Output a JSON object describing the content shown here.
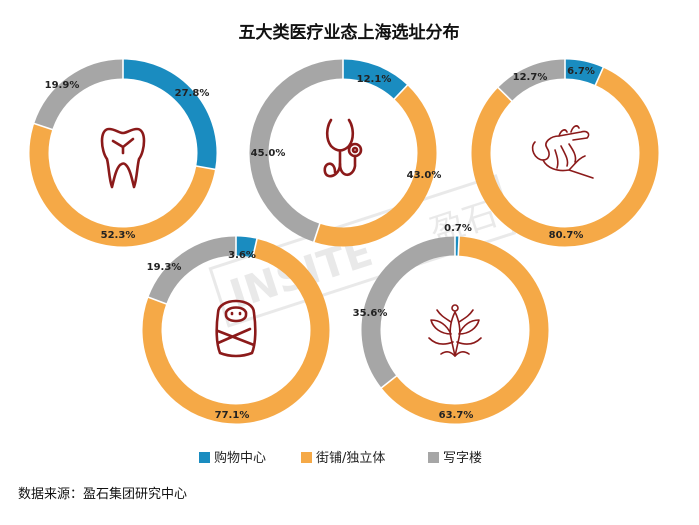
{
  "chart_data": {
    "type": "pie",
    "title": "五大类医疗业态上海选址分布",
    "categories": [
      "购物中心",
      "街铺/独立体",
      "写字楼"
    ],
    "colors": [
      "#1a8cc0",
      "#f5a947",
      "#a6a6a6"
    ],
    "charts": [
      {
        "icon": "tooth-icon",
        "values": [
          27.8,
          52.3,
          19.9
        ],
        "labels": [
          "27.8%",
          "52.3%",
          "19.9%"
        ]
      },
      {
        "icon": "stethoscope-icon",
        "values": [
          12.1,
          43.0,
          45.0
        ],
        "labels": [
          "12.1%",
          "43.0%",
          "45.0%"
        ]
      },
      {
        "icon": "hands-icon",
        "values": [
          6.7,
          80.7,
          12.7
        ],
        "labels": [
          "6.7%",
          "80.7%",
          "12.7%"
        ]
      },
      {
        "icon": "baby-icon",
        "values": [
          3.6,
          77.1,
          19.3
        ],
        "labels": [
          "3.6%",
          "77.1%",
          "19.3%"
        ]
      },
      {
        "icon": "lotus-icon",
        "values": [
          0.7,
          63.7,
          35.6
        ],
        "labels": [
          "0.7%",
          "63.7%",
          "35.6%"
        ]
      }
    ]
  },
  "legend": [
    "购物中心",
    "街铺/独立体",
    "写字楼"
  ],
  "watermark": "INSITE 盈石",
  "source": "数据来源：盈石集团研究中心"
}
